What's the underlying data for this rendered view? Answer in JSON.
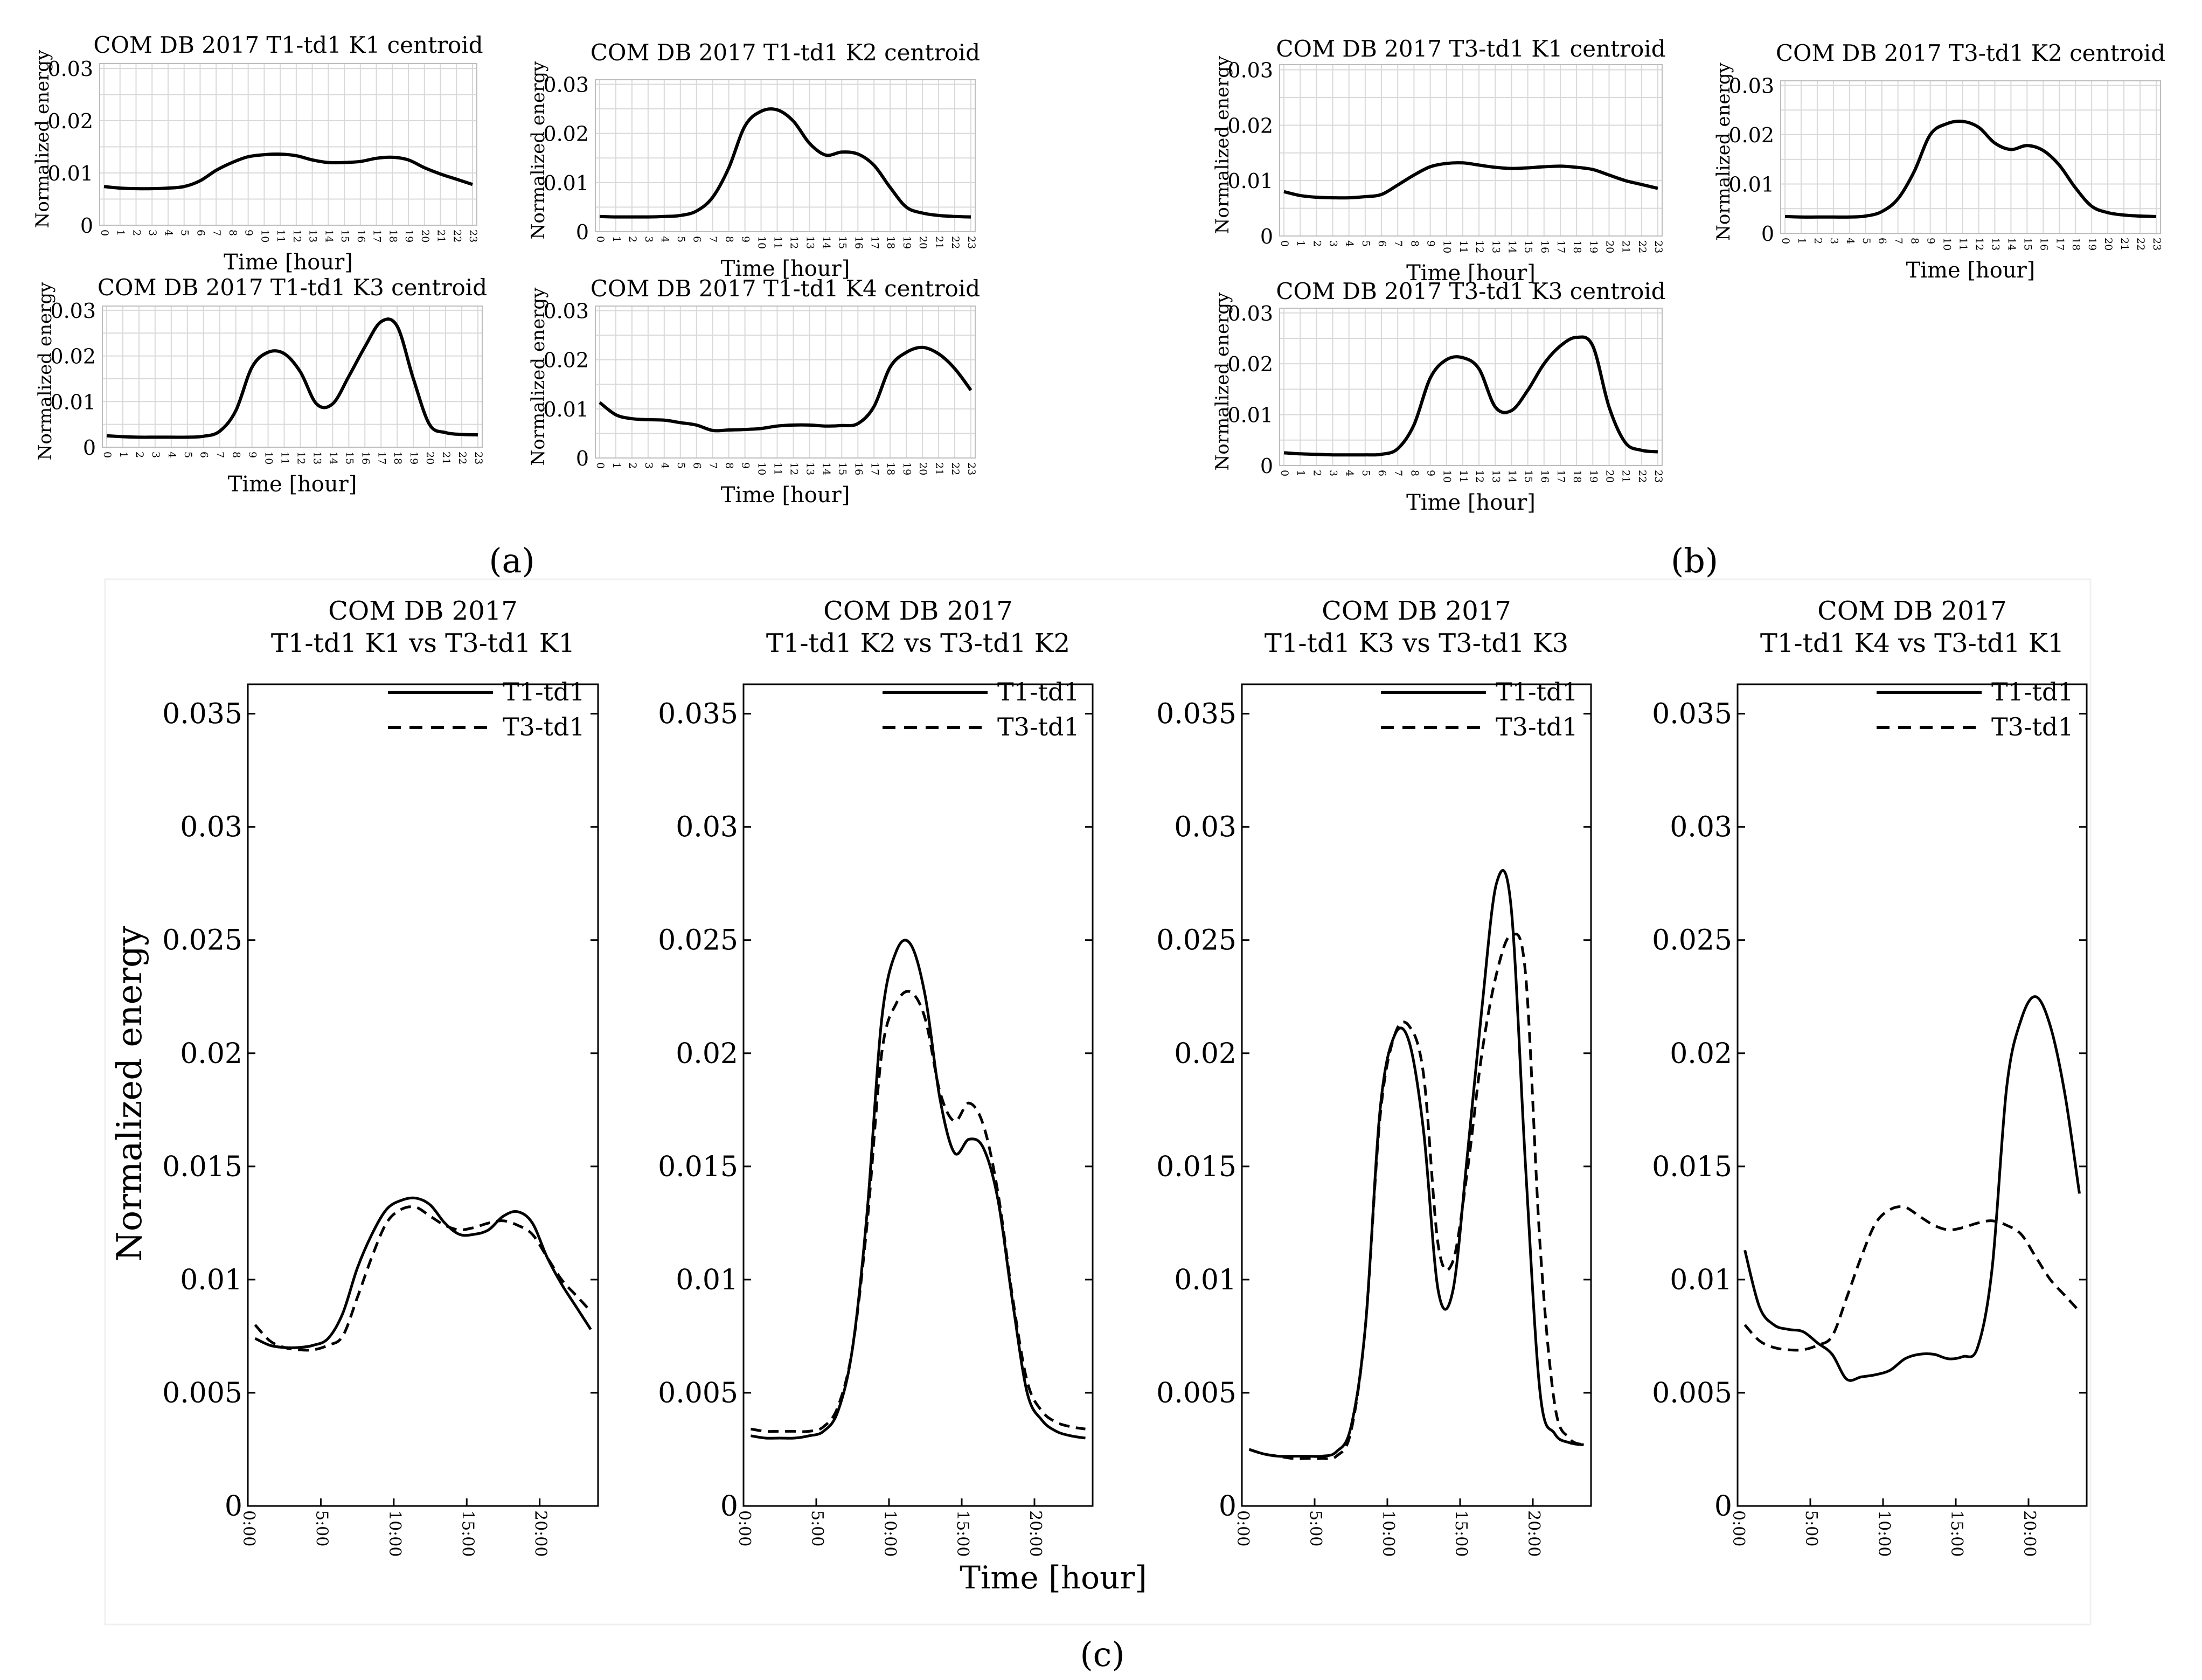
{
  "figure_labels": {
    "a": "(a)",
    "b": "(b)",
    "c": "(c)"
  },
  "colors": {
    "line": "#000000",
    "grid": "#d9d9d9",
    "axis": "#000000",
    "panel_bg": "#ffffff"
  },
  "common": {
    "ylabel": "Normalized energy",
    "xlabel": "Time [hour]",
    "hour_ticks": [
      "0",
      "1",
      "2",
      "3",
      "4",
      "5",
      "6",
      "7",
      "8",
      "9",
      "10",
      "11",
      "12",
      "13",
      "14",
      "15",
      "16",
      "17",
      "18",
      "19",
      "20",
      "21",
      "22",
      "23"
    ],
    "small_yticks": [
      "0",
      "0.01",
      "0.02",
      "0.03"
    ],
    "big_yticks": [
      "0",
      "0.005",
      "0.01",
      "0.015",
      "0.02",
      "0.025",
      "0.03",
      "0.035"
    ],
    "big_xticks": [
      "0:00",
      "5:00",
      "10:00",
      "15:00",
      "20:00"
    ],
    "legend": [
      "T1-td1",
      "T3-td1"
    ]
  },
  "chart_data": [
    {
      "type": "line",
      "title": "COM DB 2017 T1-td1 K1 centroid",
      "xlabel": "Time [hour]",
      "ylabel": "Normalized energy",
      "ylim": [
        0,
        0.03
      ],
      "x": [
        0,
        1,
        2,
        3,
        4,
        5,
        6,
        7,
        8,
        9,
        10,
        11,
        12,
        13,
        14,
        15,
        16,
        17,
        18,
        19,
        20,
        21,
        22,
        23
      ],
      "series": [
        {
          "name": "K1",
          "values": [
            0.0074,
            0.0071,
            0.007,
            0.007,
            0.0071,
            0.0074,
            0.0085,
            0.0105,
            0.012,
            0.0131,
            0.0135,
            0.0136,
            0.0133,
            0.0125,
            0.012,
            0.012,
            0.0122,
            0.0128,
            0.013,
            0.0125,
            0.011,
            0.0098,
            0.0088,
            0.0078
          ]
        }
      ]
    },
    {
      "type": "line",
      "title": "COM DB 2017 T1-td1 K2 centroid",
      "xlabel": "Time [hour]",
      "ylabel": "Normalized energy",
      "ylim": [
        0,
        0.03
      ],
      "x": [
        0,
        1,
        2,
        3,
        4,
        5,
        6,
        7,
        8,
        9,
        10,
        11,
        12,
        13,
        14,
        15,
        16,
        17,
        18,
        19,
        20,
        21,
        22,
        23
      ],
      "series": [
        {
          "name": "K2",
          "values": [
            0.0031,
            0.003,
            0.003,
            0.003,
            0.0031,
            0.0033,
            0.0042,
            0.007,
            0.013,
            0.0215,
            0.0245,
            0.0248,
            0.0225,
            0.018,
            0.0156,
            0.0162,
            0.0158,
            0.0135,
            0.009,
            0.005,
            0.0038,
            0.0033,
            0.0031,
            0.003
          ]
        }
      ]
    },
    {
      "type": "line",
      "title": "COM DB 2017 T1-td1 K3 centroid",
      "xlabel": "Time [hour]",
      "ylabel": "Normalized energy",
      "ylim": [
        0,
        0.03
      ],
      "x": [
        0,
        1,
        2,
        3,
        4,
        5,
        6,
        7,
        8,
        9,
        10,
        11,
        12,
        13,
        14,
        15,
        16,
        17,
        18,
        19,
        20,
        21,
        22,
        23
      ],
      "series": [
        {
          "name": "K3",
          "values": [
            0.0025,
            0.0023,
            0.0022,
            0.0022,
            0.0022,
            0.0022,
            0.0024,
            0.0035,
            0.008,
            0.0175,
            0.0208,
            0.0205,
            0.0165,
            0.0095,
            0.0095,
            0.0155,
            0.022,
            0.0275,
            0.0265,
            0.015,
            0.005,
            0.0032,
            0.0028,
            0.0027
          ]
        }
      ]
    },
    {
      "type": "line",
      "title": "COM DB 2017 T1-td1 K4 centroid",
      "xlabel": "Time [hour]",
      "ylabel": "Normalized energy",
      "ylim": [
        0,
        0.03
      ],
      "x": [
        0,
        1,
        2,
        3,
        4,
        5,
        6,
        7,
        8,
        9,
        10,
        11,
        12,
        13,
        14,
        15,
        16,
        17,
        18,
        19,
        20,
        21,
        22,
        23
      ],
      "series": [
        {
          "name": "K4",
          "values": [
            0.0113,
            0.0088,
            0.008,
            0.0078,
            0.0077,
            0.0072,
            0.0067,
            0.0056,
            0.0057,
            0.0058,
            0.006,
            0.0065,
            0.0067,
            0.0067,
            0.0065,
            0.0066,
            0.007,
            0.0105,
            0.0185,
            0.0215,
            0.0225,
            0.0212,
            0.0182,
            0.0138
          ]
        }
      ]
    },
    {
      "type": "line",
      "title": "COM DB 2017 T3-td1 K1 centroid",
      "xlabel": "Time [hour]",
      "ylabel": "Normalized energy",
      "ylim": [
        0,
        0.03
      ],
      "x": [
        0,
        1,
        2,
        3,
        4,
        5,
        6,
        7,
        8,
        9,
        10,
        11,
        12,
        13,
        14,
        15,
        16,
        17,
        18,
        19,
        20,
        21,
        22,
        23
      ],
      "series": [
        {
          "name": "K1",
          "values": [
            0.008,
            0.0073,
            0.007,
            0.0069,
            0.0069,
            0.0071,
            0.0075,
            0.0092,
            0.011,
            0.0125,
            0.0131,
            0.0132,
            0.0128,
            0.0124,
            0.0122,
            0.0123,
            0.0125,
            0.0126,
            0.0124,
            0.012,
            0.011,
            0.01,
            0.0093,
            0.0086
          ]
        }
      ]
    },
    {
      "type": "line",
      "title": "COM DB 2017 T3-td1 K2 centroid",
      "xlabel": "Time [hour]",
      "ylabel": "Normalized energy",
      "ylim": [
        0,
        0.03
      ],
      "x": [
        0,
        1,
        2,
        3,
        4,
        5,
        6,
        7,
        8,
        9,
        10,
        11,
        12,
        13,
        14,
        15,
        16,
        17,
        18,
        19,
        20,
        21,
        22,
        23
      ],
      "series": [
        {
          "name": "K2",
          "values": [
            0.0034,
            0.0033,
            0.0033,
            0.0033,
            0.0033,
            0.0035,
            0.0044,
            0.007,
            0.0125,
            0.02,
            0.0222,
            0.0227,
            0.0215,
            0.0183,
            0.017,
            0.0178,
            0.0168,
            0.0138,
            0.0092,
            0.0055,
            0.0042,
            0.0037,
            0.0035,
            0.0034
          ]
        }
      ]
    },
    {
      "type": "line",
      "title": "COM DB 2017 T3-td1 K3 centroid",
      "xlabel": "Time [hour]",
      "ylabel": "Normalized energy",
      "ylim": [
        0,
        0.03
      ],
      "x": [
        0,
        1,
        2,
        3,
        4,
        5,
        6,
        7,
        8,
        9,
        10,
        11,
        12,
        13,
        14,
        15,
        16,
        17,
        18,
        19,
        20,
        21,
        22,
        23
      ],
      "series": [
        {
          "name": "K3",
          "values": [
            0.0025,
            0.0023,
            0.0022,
            0.0021,
            0.0021,
            0.0021,
            0.0022,
            0.0033,
            0.008,
            0.0172,
            0.0208,
            0.0212,
            0.019,
            0.0115,
            0.0108,
            0.0148,
            0.02,
            0.0235,
            0.0252,
            0.0235,
            0.0115,
            0.0045,
            0.003,
            0.0027
          ]
        }
      ]
    },
    {
      "type": "line",
      "title": "COM DB 2017",
      "subtitle": "T1-td1 K1 vs T3-td1 K1",
      "xlabel": "",
      "ylabel": "Normalized energy",
      "ylim": [
        0,
        0.035
      ],
      "x": [
        0,
        1,
        2,
        3,
        4,
        5,
        6,
        7,
        8,
        9,
        10,
        11,
        12,
        13,
        14,
        15,
        16,
        17,
        18,
        19,
        20,
        21,
        22,
        23
      ],
      "series": [
        {
          "name": "T1-td1",
          "values": [
            0.0074,
            0.0071,
            0.007,
            0.007,
            0.0071,
            0.0074,
            0.0085,
            0.0105,
            0.012,
            0.0131,
            0.0135,
            0.0136,
            0.0133,
            0.0125,
            0.012,
            0.012,
            0.0122,
            0.0128,
            0.013,
            0.0125,
            0.011,
            0.0098,
            0.0088,
            0.0078
          ]
        },
        {
          "name": "T3-td1",
          "values": [
            0.008,
            0.0073,
            0.007,
            0.0069,
            0.0069,
            0.0071,
            0.0075,
            0.0092,
            0.011,
            0.0125,
            0.0131,
            0.0132,
            0.0128,
            0.0124,
            0.0122,
            0.0123,
            0.0125,
            0.0126,
            0.0124,
            0.012,
            0.011,
            0.01,
            0.0093,
            0.0086
          ]
        }
      ]
    },
    {
      "type": "line",
      "title": "COM DB 2017",
      "subtitle": "T1-td1 K2 vs T3-td1 K2",
      "xlabel": "",
      "ylabel": "",
      "ylim": [
        0,
        0.035
      ],
      "x": [
        0,
        1,
        2,
        3,
        4,
        5,
        6,
        7,
        8,
        9,
        10,
        11,
        12,
        13,
        14,
        15,
        16,
        17,
        18,
        19,
        20,
        21,
        22,
        23
      ],
      "series": [
        {
          "name": "T1-td1",
          "values": [
            0.0031,
            0.003,
            0.003,
            0.003,
            0.0031,
            0.0033,
            0.0042,
            0.007,
            0.013,
            0.0215,
            0.0245,
            0.0248,
            0.0225,
            0.018,
            0.0156,
            0.0162,
            0.0158,
            0.0135,
            0.009,
            0.005,
            0.0038,
            0.0033,
            0.0031,
            0.003
          ]
        },
        {
          "name": "T3-td1",
          "values": [
            0.0034,
            0.0033,
            0.0033,
            0.0033,
            0.0033,
            0.0035,
            0.0044,
            0.007,
            0.0125,
            0.02,
            0.0222,
            0.0227,
            0.0215,
            0.0183,
            0.017,
            0.0178,
            0.0168,
            0.0138,
            0.0092,
            0.0055,
            0.0042,
            0.0037,
            0.0035,
            0.0034
          ]
        }
      ]
    },
    {
      "type": "line",
      "title": "COM DB 2017",
      "subtitle": "T1-td1 K3 vs T3-td1 K3",
      "xlabel": "",
      "ylabel": "",
      "ylim": [
        0,
        0.035
      ],
      "x": [
        0,
        1,
        2,
        3,
        4,
        5,
        6,
        7,
        8,
        9,
        10,
        11,
        12,
        13,
        14,
        15,
        16,
        17,
        18,
        19,
        20,
        21,
        22,
        23
      ],
      "series": [
        {
          "name": "T1-td1",
          "values": [
            0.0025,
            0.0023,
            0.0022,
            0.0022,
            0.0022,
            0.0022,
            0.0024,
            0.0035,
            0.008,
            0.0175,
            0.0208,
            0.0205,
            0.0165,
            0.0095,
            0.0095,
            0.0155,
            0.022,
            0.0275,
            0.0265,
            0.015,
            0.005,
            0.0032,
            0.0028,
            0.0027
          ]
        },
        {
          "name": "T3-td1",
          "values": [
            0.0025,
            0.0023,
            0.0022,
            0.0021,
            0.0021,
            0.0021,
            0.0022,
            0.0033,
            0.008,
            0.0172,
            0.0208,
            0.0212,
            0.019,
            0.0115,
            0.0108,
            0.0148,
            0.02,
            0.0235,
            0.0252,
            0.0235,
            0.0115,
            0.0045,
            0.003,
            0.0027
          ]
        }
      ]
    },
    {
      "type": "line",
      "title": "COM DB 2017",
      "subtitle": "T1-td1 K4 vs T3-td1 K1",
      "xlabel": "",
      "ylabel": "",
      "ylim": [
        0,
        0.035
      ],
      "x": [
        0,
        1,
        2,
        3,
        4,
        5,
        6,
        7,
        8,
        9,
        10,
        11,
        12,
        13,
        14,
        15,
        16,
        17,
        18,
        19,
        20,
        21,
        22,
        23
      ],
      "series": [
        {
          "name": "T1-td1",
          "values": [
            0.0113,
            0.0088,
            0.008,
            0.0078,
            0.0077,
            0.0072,
            0.0067,
            0.0056,
            0.0057,
            0.0058,
            0.006,
            0.0065,
            0.0067,
            0.0067,
            0.0065,
            0.0066,
            0.007,
            0.0105,
            0.0185,
            0.0215,
            0.0225,
            0.0212,
            0.0182,
            0.0138
          ]
        },
        {
          "name": "T3-td1",
          "values": [
            0.008,
            0.0073,
            0.007,
            0.0069,
            0.0069,
            0.0071,
            0.0075,
            0.0092,
            0.011,
            0.0125,
            0.0131,
            0.0132,
            0.0128,
            0.0124,
            0.0122,
            0.0123,
            0.0125,
            0.0126,
            0.0124,
            0.012,
            0.011,
            0.01,
            0.0093,
            0.0086
          ]
        }
      ]
    }
  ]
}
